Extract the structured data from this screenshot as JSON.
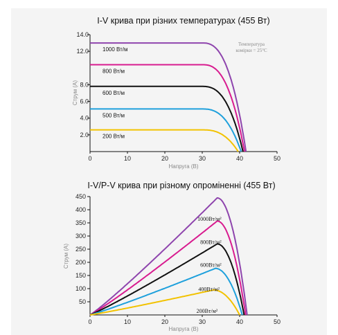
{
  "chart_data": [
    {
      "type": "line",
      "title": "I-V крива при різних температурах (455 Вт)",
      "xlabel": "Напруга (В)",
      "ylabel": "Струм (А)",
      "xlim": [
        0,
        50
      ],
      "ylim": [
        0,
        14
      ],
      "x_ticks": [
        "0",
        "10",
        "20",
        "30",
        "40",
        "50"
      ],
      "y_ticks": [
        "2.0",
        "4.0",
        "6.0",
        "8.0",
        "12.0",
        "14.0"
      ],
      "annotation": [
        "Температура",
        "комірки = 25°C"
      ],
      "series": [
        {
          "name": "1000 Вт/м",
          "color": "#8e44ad",
          "isc": 13.0,
          "voc": 41.7,
          "knee": 30
        },
        {
          "name": "800 Вт/м",
          "color": "#d81b8f",
          "isc": 10.4,
          "voc": 41.3,
          "knee": 30
        },
        {
          "name": "600 Вт/м",
          "color": "#111111",
          "isc": 7.8,
          "voc": 40.9,
          "knee": 30
        },
        {
          "name": "500 Вт/м",
          "color": "#1ea0dc",
          "isc": 5.1,
          "voc": 40.4,
          "knee": 30
        },
        {
          "name": "200 Вт/м",
          "color": "#f2c200",
          "isc": 2.6,
          "voc": 39.6,
          "knee": 30
        }
      ]
    },
    {
      "type": "line",
      "title": "I-V/P-V крива при різному опроміненні (455 Вт)",
      "xlabel": "Напруга (В)",
      "ylabel": "Струм (А)",
      "xlim": [
        0,
        50
      ],
      "ylim": [
        0,
        450
      ],
      "x_ticks": [
        "0",
        "10",
        "20",
        "30",
        "40",
        "50"
      ],
      "y_ticks": [
        "50",
        "100",
        "150",
        "200",
        "250",
        "300",
        "350",
        "400",
        "450"
      ],
      "series": [
        {
          "name": "1000Вт/м²",
          "color": "#8e44ad",
          "pmax": 445,
          "vmp": 34,
          "voc": 42.0
        },
        {
          "name": "800Вт/м²",
          "color": "#d81b8f",
          "pmax": 357,
          "vmp": 34,
          "voc": 41.6
        },
        {
          "name": "600Вт/м²",
          "color": "#111111",
          "pmax": 270,
          "vmp": 34,
          "voc": 41.2
        },
        {
          "name": "400Вт/м²",
          "color": "#1ea0dc",
          "pmax": 177,
          "vmp": 33.5,
          "voc": 40.7
        },
        {
          "name": "200Вт/м²",
          "color": "#f2c200",
          "pmax": 95,
          "vmp": 33,
          "voc": 40.0
        }
      ]
    }
  ]
}
